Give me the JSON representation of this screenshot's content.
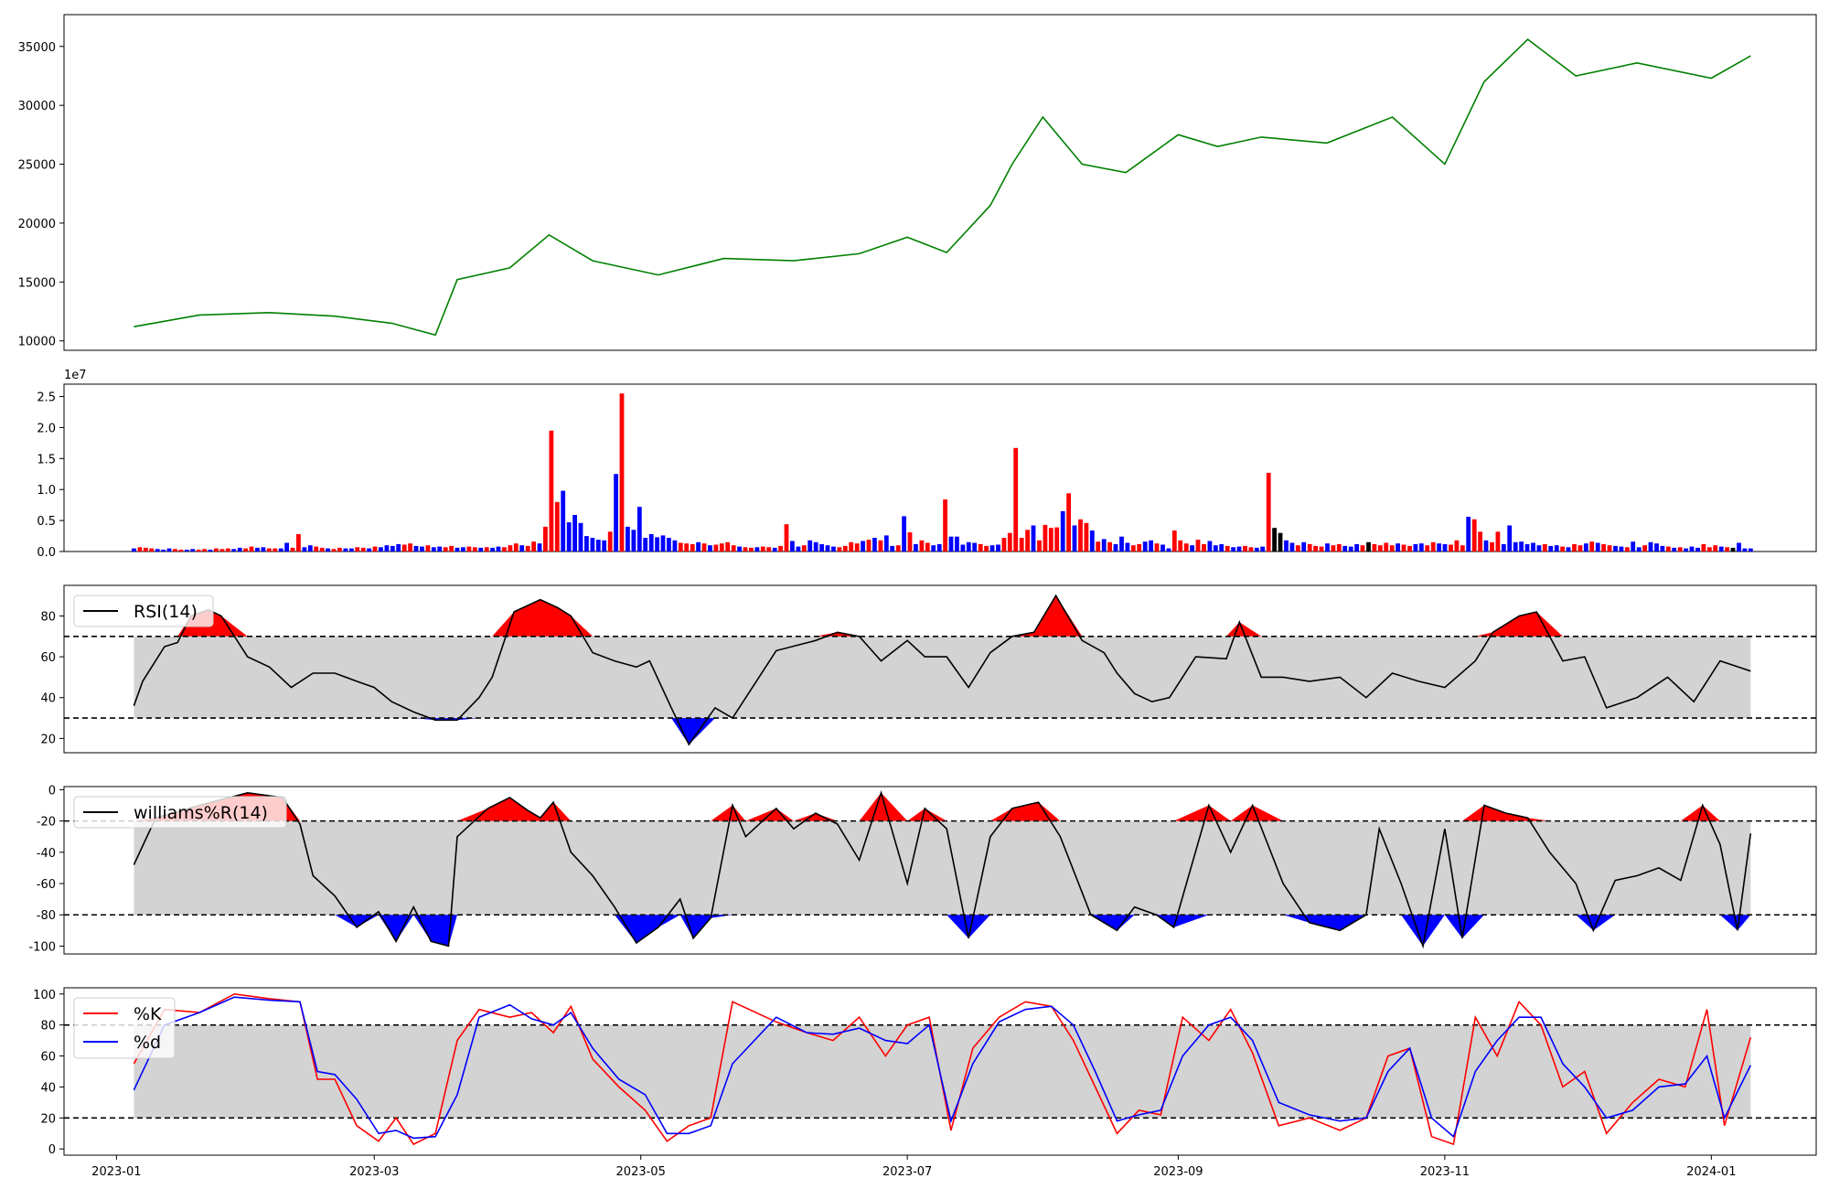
{
  "chart_data": [
    {
      "panel": "price",
      "type": "line",
      "color": "#008000",
      "ylim": [
        9200,
        37700
      ],
      "yticks": [
        10000,
        15000,
        20000,
        25000,
        30000,
        35000
      ],
      "x": [
        "2023-01-05",
        "2023-01-20",
        "2023-02-05",
        "2023-02-20",
        "2023-03-05",
        "2023-03-15",
        "2023-03-20",
        "2023-04-01",
        "2023-04-10",
        "2023-04-20",
        "2023-05-05",
        "2023-05-20",
        "2023-06-05",
        "2023-06-20",
        "2023-07-01",
        "2023-07-10",
        "2023-07-20",
        "2023-07-25",
        "2023-08-01",
        "2023-08-10",
        "2023-08-20",
        "2023-09-01",
        "2023-09-10",
        "2023-09-20",
        "2023-10-05",
        "2023-10-20",
        "2023-11-01",
        "2023-11-10",
        "2023-11-20",
        "2023-12-01",
        "2023-12-15",
        "2024-01-01",
        "2024-01-10"
      ],
      "y": [
        11200,
        12200,
        12400,
        12100,
        11500,
        10500,
        15200,
        16200,
        19000,
        16800,
        15600,
        17000,
        16800,
        17400,
        18800,
        17500,
        21500,
        25000,
        29000,
        25000,
        24300,
        27500,
        26500,
        27300,
        26800,
        29000,
        25000,
        32000,
        35600,
        32500,
        33600,
        32300,
        34200
      ]
    },
    {
      "panel": "volume",
      "type": "bar",
      "offset_label": "1e7",
      "ylim": [
        0,
        2.7
      ],
      "yticks": [
        0.0,
        0.5,
        1.0,
        1.5,
        2.0,
        2.5
      ],
      "up_color": "#ff0000",
      "down_color": "#0000ff",
      "neutral_color": "#000000",
      "start_date": "2023-01-05",
      "end_date": "2024-01-10",
      "values": [
        0.05,
        0.07,
        0.06,
        0.05,
        0.04,
        0.03,
        0.05,
        0.04,
        0.03,
        0.03,
        0.04,
        0.03,
        0.04,
        0.03,
        0.05,
        0.04,
        0.05,
        0.04,
        0.06,
        0.05,
        0.08,
        0.06,
        0.07,
        0.05,
        0.05,
        0.05,
        0.14,
        0.06,
        0.28,
        0.07,
        0.1,
        0.08,
        0.06,
        0.05,
        0.04,
        0.06,
        0.05,
        0.05,
        0.07,
        0.06,
        0.05,
        0.08,
        0.07,
        0.1,
        0.09,
        0.12,
        0.11,
        0.13,
        0.09,
        0.08,
        0.1,
        0.07,
        0.08,
        0.07,
        0.09,
        0.06,
        0.07,
        0.08,
        0.07,
        0.06,
        0.07,
        0.06,
        0.08,
        0.07,
        0.1,
        0.13,
        0.1,
        0.09,
        0.16,
        0.13,
        0.4,
        1.95,
        0.8,
        0.98,
        0.47,
        0.59,
        0.46,
        0.25,
        0.22,
        0.19,
        0.18,
        0.32,
        1.25,
        2.55,
        0.4,
        0.35,
        0.72,
        0.22,
        0.28,
        0.23,
        0.26,
        0.22,
        0.18,
        0.14,
        0.13,
        0.12,
        0.15,
        0.13,
        0.1,
        0.11,
        0.13,
        0.15,
        0.1,
        0.08,
        0.07,
        0.06,
        0.07,
        0.08,
        0.07,
        0.06,
        0.09,
        0.44,
        0.17,
        0.08,
        0.1,
        0.18,
        0.15,
        0.12,
        0.1,
        0.08,
        0.07,
        0.09,
        0.15,
        0.13,
        0.17,
        0.19,
        0.22,
        0.18,
        0.26,
        0.09,
        0.1,
        0.57,
        0.31,
        0.12,
        0.18,
        0.14,
        0.1,
        0.12,
        0.84,
        0.24,
        0.24,
        0.11,
        0.15,
        0.14,
        0.12,
        0.09,
        0.1,
        0.11,
        0.22,
        0.3,
        1.67,
        0.22,
        0.35,
        0.42,
        0.18,
        0.43,
        0.38,
        0.39,
        0.65,
        0.94,
        0.42,
        0.52,
        0.46,
        0.34,
        0.16,
        0.2,
        0.15,
        0.12,
        0.24,
        0.14,
        0.1,
        0.12,
        0.16,
        0.18,
        0.13,
        0.11,
        0.05,
        0.34,
        0.18,
        0.13,
        0.1,
        0.19,
        0.12,
        0.17,
        0.1,
        0.12,
        0.09,
        0.07,
        0.08,
        0.09,
        0.07,
        0.06,
        0.08,
        1.27,
        0.38,
        0.3,
        0.18,
        0.14,
        0.1,
        0.15,
        0.12,
        0.09,
        0.08,
        0.13,
        0.1,
        0.12,
        0.09,
        0.08,
        0.12,
        0.1,
        0.15,
        0.12,
        0.1,
        0.14,
        0.1,
        0.13,
        0.11,
        0.09,
        0.12,
        0.13,
        0.1,
        0.15,
        0.13,
        0.12,
        0.11,
        0.18,
        0.1,
        0.56,
        0.52,
        0.32,
        0.18,
        0.15,
        0.32,
        0.12,
        0.42,
        0.15,
        0.16,
        0.12,
        0.14,
        0.1,
        0.12,
        0.09,
        0.1,
        0.08,
        0.07,
        0.12,
        0.1,
        0.13,
        0.16,
        0.14,
        0.12,
        0.1,
        0.09,
        0.08,
        0.07,
        0.16,
        0.07,
        0.1,
        0.15,
        0.13,
        0.09,
        0.08,
        0.06,
        0.07,
        0.05,
        0.08,
        0.06,
        0.12,
        0.07,
        0.1,
        0.08,
        0.07,
        0.06,
        0.14,
        0.05,
        0.05
      ],
      "colors": [
        "d",
        "u",
        "u",
        "u",
        "d",
        "d",
        "d",
        "u",
        "u",
        "d",
        "d",
        "u",
        "u",
        "d",
        "u",
        "u",
        "u",
        "d",
        "d",
        "u",
        "u",
        "d",
        "d",
        "u",
        "u",
        "d",
        "d",
        "u",
        "u",
        "d",
        "d",
        "u",
        "u",
        "d",
        "u",
        "u",
        "d",
        "d",
        "u",
        "u",
        "d",
        "u",
        "d",
        "d",
        "d",
        "d",
        "u",
        "u",
        "d",
        "d",
        "u",
        "d",
        "d",
        "u",
        "u",
        "d",
        "d",
        "u",
        "u",
        "d",
        "u",
        "d",
        "d",
        "u",
        "u",
        "u",
        "d",
        "u",
        "u",
        "d",
        "u",
        "u",
        "u",
        "d",
        "d",
        "d",
        "d",
        "d",
        "d",
        "d",
        "d",
        "u",
        "d",
        "u",
        "d",
        "d",
        "d",
        "d",
        "d",
        "d",
        "d",
        "d",
        "d",
        "u",
        "u",
        "u",
        "d",
        "u",
        "d",
        "u",
        "u",
        "u",
        "u",
        "d",
        "u",
        "u",
        "d",
        "u",
        "u",
        "d",
        "u",
        "u",
        "d",
        "d",
        "u",
        "d",
        "d",
        "d",
        "d",
        "d",
        "u",
        "u",
        "u",
        "u",
        "d",
        "u",
        "d",
        "u",
        "d",
        "d",
        "u",
        "d",
        "u",
        "d",
        "u",
        "u",
        "d",
        "d",
        "u",
        "d",
        "d",
        "d",
        "d",
        "d",
        "u",
        "u",
        "d",
        "d",
        "u",
        "u",
        "u",
        "u",
        "u",
        "d",
        "u",
        "u",
        "u",
        "u",
        "d",
        "u",
        "d",
        "u",
        "u",
        "d",
        "u",
        "d",
        "u",
        "d",
        "d",
        "d",
        "u",
        "u",
        "d",
        "d",
        "u",
        "d",
        "d",
        "u",
        "u",
        "u",
        "d",
        "u",
        "u",
        "d",
        "d",
        "d",
        "u",
        "d",
        "d",
        "u",
        "u",
        "d",
        "d",
        "u",
        "n",
        "n",
        "d",
        "d",
        "u",
        "d",
        "u",
        "u",
        "u",
        "d",
        "u",
        "u",
        "d",
        "d",
        "d",
        "u",
        "n",
        "u",
        "u",
        "u",
        "u",
        "d",
        "u",
        "u",
        "d",
        "d",
        "u",
        "u",
        "d",
        "d",
        "u",
        "u",
        "u",
        "d",
        "u",
        "u",
        "d",
        "u",
        "u",
        "d",
        "d",
        "d",
        "d",
        "d",
        "d",
        "d",
        "u",
        "d",
        "d",
        "u",
        "d",
        "u",
        "u",
        "d",
        "u",
        "d",
        "u",
        "u",
        "d",
        "d",
        "u",
        "d",
        "d",
        "u",
        "d",
        "d",
        "d",
        "u",
        "d",
        "u",
        "d",
        "d",
        "d",
        "u",
        "u",
        "u",
        "d",
        "u",
        "n"
      ]
    },
    {
      "panel": "rsi",
      "type": "area",
      "legend": [
        "RSI(14)"
      ],
      "line_color": "#000000",
      "ylim": [
        13,
        95
      ],
      "yticks": [
        20,
        40,
        60,
        80
      ],
      "upper": 70,
      "lower": 30,
      "band_color": "#d3d3d3",
      "over_color": "#ff0000",
      "under_color": "#0000ff",
      "x": [
        "2023-01-05",
        "2023-01-07",
        "2023-01-12",
        "2023-01-15",
        "2023-01-18",
        "2023-01-22",
        "2023-01-25",
        "2023-01-31",
        "2023-02-05",
        "2023-02-10",
        "2023-02-15",
        "2023-02-20",
        "2023-02-25",
        "2023-03-01",
        "2023-03-05",
        "2023-03-10",
        "2023-03-15",
        "2023-03-20",
        "2023-03-25",
        "2023-03-28",
        "2023-04-02",
        "2023-04-08",
        "2023-04-12",
        "2023-04-15",
        "2023-04-20",
        "2023-04-25",
        "2023-04-30",
        "2023-05-03",
        "2023-05-08",
        "2023-05-12",
        "2023-05-18",
        "2023-05-22",
        "2023-06-01",
        "2023-06-10",
        "2023-06-15",
        "2023-06-20",
        "2023-06-25",
        "2023-07-01",
        "2023-07-05",
        "2023-07-10",
        "2023-07-15",
        "2023-07-20",
        "2023-07-25",
        "2023-07-30",
        "2023-08-04",
        "2023-08-10",
        "2023-08-15",
        "2023-08-18",
        "2023-08-22",
        "2023-08-26",
        "2023-08-30",
        "2023-09-05",
        "2023-09-12",
        "2023-09-15",
        "2023-09-20",
        "2023-09-25",
        "2023-10-01",
        "2023-10-08",
        "2023-10-14",
        "2023-10-20",
        "2023-10-26",
        "2023-11-01",
        "2023-11-08",
        "2023-11-12",
        "2023-11-18",
        "2023-11-22",
        "2023-11-28",
        "2023-12-03",
        "2023-12-08",
        "2023-12-15",
        "2023-12-22",
        "2023-12-28",
        "2024-01-03",
        "2024-01-10"
      ],
      "y": [
        36,
        48,
        65,
        67,
        80,
        83,
        80,
        60,
        55,
        45,
        52,
        52,
        48,
        45,
        38,
        33,
        29,
        29,
        40,
        50,
        82,
        88,
        84,
        80,
        62,
        58,
        55,
        58,
        35,
        17,
        35,
        30,
        63,
        68,
        72,
        70,
        58,
        68,
        60,
        60,
        45,
        62,
        70,
        72,
        90,
        68,
        62,
        52,
        42,
        38,
        40,
        60,
        59,
        77,
        50,
        50,
        48,
        50,
        40,
        52,
        48,
        45,
        58,
        72,
        80,
        82,
        58,
        60,
        35,
        40,
        50,
        38,
        58,
        53
      ]
    },
    {
      "panel": "williams",
      "type": "area",
      "legend": [
        "williams%R(14)"
      ],
      "line_color": "#000000",
      "ylim": [
        -105,
        2
      ],
      "yticks": [
        0,
        -20,
        -40,
        -60,
        -80,
        -100
      ],
      "upper": -20,
      "lower": -80,
      "band_color": "#d3d3d3",
      "over_color": "#ff0000",
      "under_color": "#0000ff",
      "x": [
        "2023-01-05",
        "2023-01-10",
        "2023-01-20",
        "2023-01-31",
        "2023-02-08",
        "2023-02-12",
        "2023-02-15",
        "2023-02-20",
        "2023-02-25",
        "2023-03-02",
        "2023-03-06",
        "2023-03-10",
        "2023-03-14",
        "2023-03-18",
        "2023-03-20",
        "2023-03-27",
        "2023-04-01",
        "2023-04-05",
        "2023-04-08",
        "2023-04-11",
        "2023-04-15",
        "2023-04-20",
        "2023-04-25",
        "2023-04-30",
        "2023-05-05",
        "2023-05-10",
        "2023-05-13",
        "2023-05-17",
        "2023-05-22",
        "2023-05-25",
        "2023-06-01",
        "2023-06-05",
        "2023-06-10",
        "2023-06-15",
        "2023-06-20",
        "2023-06-25",
        "2023-07-01",
        "2023-07-05",
        "2023-07-10",
        "2023-07-15",
        "2023-07-20",
        "2023-07-25",
        "2023-07-31",
        "2023-08-05",
        "2023-08-12",
        "2023-08-18",
        "2023-08-22",
        "2023-08-27",
        "2023-08-31",
        "2023-09-08",
        "2023-09-13",
        "2023-09-18",
        "2023-09-25",
        "2023-10-01",
        "2023-10-08",
        "2023-10-14",
        "2023-10-17",
        "2023-10-22",
        "2023-10-27",
        "2023-11-01",
        "2023-11-05",
        "2023-11-10",
        "2023-11-15",
        "2023-11-20",
        "2023-11-25",
        "2023-12-01",
        "2023-12-05",
        "2023-12-10",
        "2023-12-15",
        "2023-12-20",
        "2023-12-25",
        "2023-12-30",
        "2024-01-03",
        "2024-01-07",
        "2024-01-10"
      ],
      "y": [
        -48,
        -18,
        -10,
        -2,
        -5,
        -22,
        -55,
        -68,
        -88,
        -78,
        -97,
        -75,
        -97,
        -100,
        -30,
        -12,
        -5,
        -13,
        -18,
        -8,
        -40,
        -55,
        -75,
        -98,
        -88,
        -70,
        -95,
        -82,
        -10,
        -30,
        -12,
        -25,
        -15,
        -22,
        -45,
        -2,
        -60,
        -12,
        -25,
        -95,
        -30,
        -12,
        -8,
        -30,
        -80,
        -90,
        -75,
        -80,
        -88,
        -10,
        -40,
        -10,
        -60,
        -85,
        -90,
        -80,
        -25,
        -60,
        -100,
        -25,
        -95,
        -10,
        -15,
        -18,
        -40,
        -60,
        -90,
        -58,
        -55,
        -50,
        -58,
        -10,
        -35,
        -90,
        -28
      ]
    },
    {
      "panel": "stochastic",
      "type": "line",
      "legend": [
        "%K",
        "%d"
      ],
      "ylim": [
        -4,
        104
      ],
      "yticks": [
        0,
        20,
        40,
        60,
        80,
        100
      ],
      "upper": 80,
      "lower": 20,
      "band_color": "#d3d3d3",
      "x": [
        "2023-01-05",
        "2023-01-12",
        "2023-01-20",
        "2023-01-28",
        "2023-02-05",
        "2023-02-12",
        "2023-02-16",
        "2023-02-20",
        "2023-02-25",
        "2023-03-02",
        "2023-03-06",
        "2023-03-10",
        "2023-03-15",
        "2023-03-20",
        "2023-03-25",
        "2023-04-01",
        "2023-04-06",
        "2023-04-11",
        "2023-04-15",
        "2023-04-20",
        "2023-04-26",
        "2023-05-02",
        "2023-05-07",
        "2023-05-12",
        "2023-05-17",
        "2023-05-22",
        "2023-06-01",
        "2023-06-08",
        "2023-06-14",
        "2023-06-20",
        "2023-06-26",
        "2023-07-01",
        "2023-07-06",
        "2023-07-11",
        "2023-07-16",
        "2023-07-22",
        "2023-07-28",
        "2023-08-03",
        "2023-08-08",
        "2023-08-13",
        "2023-08-18",
        "2023-08-23",
        "2023-08-28",
        "2023-09-02",
        "2023-09-08",
        "2023-09-13",
        "2023-09-18",
        "2023-09-24",
        "2023-10-01",
        "2023-10-08",
        "2023-10-14",
        "2023-10-19",
        "2023-10-24",
        "2023-10-29",
        "2023-11-03",
        "2023-11-08",
        "2023-11-13",
        "2023-11-18",
        "2023-11-23",
        "2023-11-28",
        "2023-12-03",
        "2023-12-08",
        "2023-12-14",
        "2023-12-20",
        "2023-12-26",
        "2023-12-31",
        "2024-01-04",
        "2024-01-10"
      ],
      "series": [
        {
          "name": "%K",
          "color": "#ff0000",
          "values": [
            55,
            90,
            88,
            100,
            97,
            95,
            45,
            45,
            15,
            5,
            20,
            3,
            10,
            70,
            90,
            85,
            88,
            75,
            92,
            58,
            40,
            25,
            5,
            15,
            20,
            95,
            82,
            75,
            70,
            85,
            60,
            80,
            85,
            12,
            65,
            85,
            95,
            92,
            70,
            40,
            10,
            25,
            22,
            85,
            70,
            90,
            62,
            15,
            20,
            12,
            20,
            60,
            65,
            8,
            3,
            85,
            60,
            95,
            80,
            40,
            50,
            10,
            30,
            45,
            40,
            90,
            15,
            72
          ]
        },
        {
          "name": "%d",
          "color": "#0000ff",
          "values": [
            38,
            80,
            88,
            98,
            96,
            95,
            50,
            48,
            32,
            10,
            12,
            7,
            8,
            35,
            85,
            93,
            84,
            80,
            88,
            65,
            45,
            35,
            10,
            10,
            15,
            55,
            85,
            75,
            74,
            78,
            70,
            68,
            80,
            18,
            55,
            82,
            90,
            92,
            80,
            50,
            18,
            22,
            25,
            60,
            80,
            85,
            70,
            30,
            22,
            18,
            20,
            50,
            65,
            20,
            8,
            50,
            70,
            85,
            85,
            55,
            40,
            20,
            25,
            40,
            42,
            60,
            20,
            54
          ]
        }
      ]
    }
  ],
  "xaxis": {
    "ticks": [
      "2023-01",
      "2023-03",
      "2023-05",
      "2023-07",
      "2023-09",
      "2023-11",
      "2024-01"
    ]
  }
}
